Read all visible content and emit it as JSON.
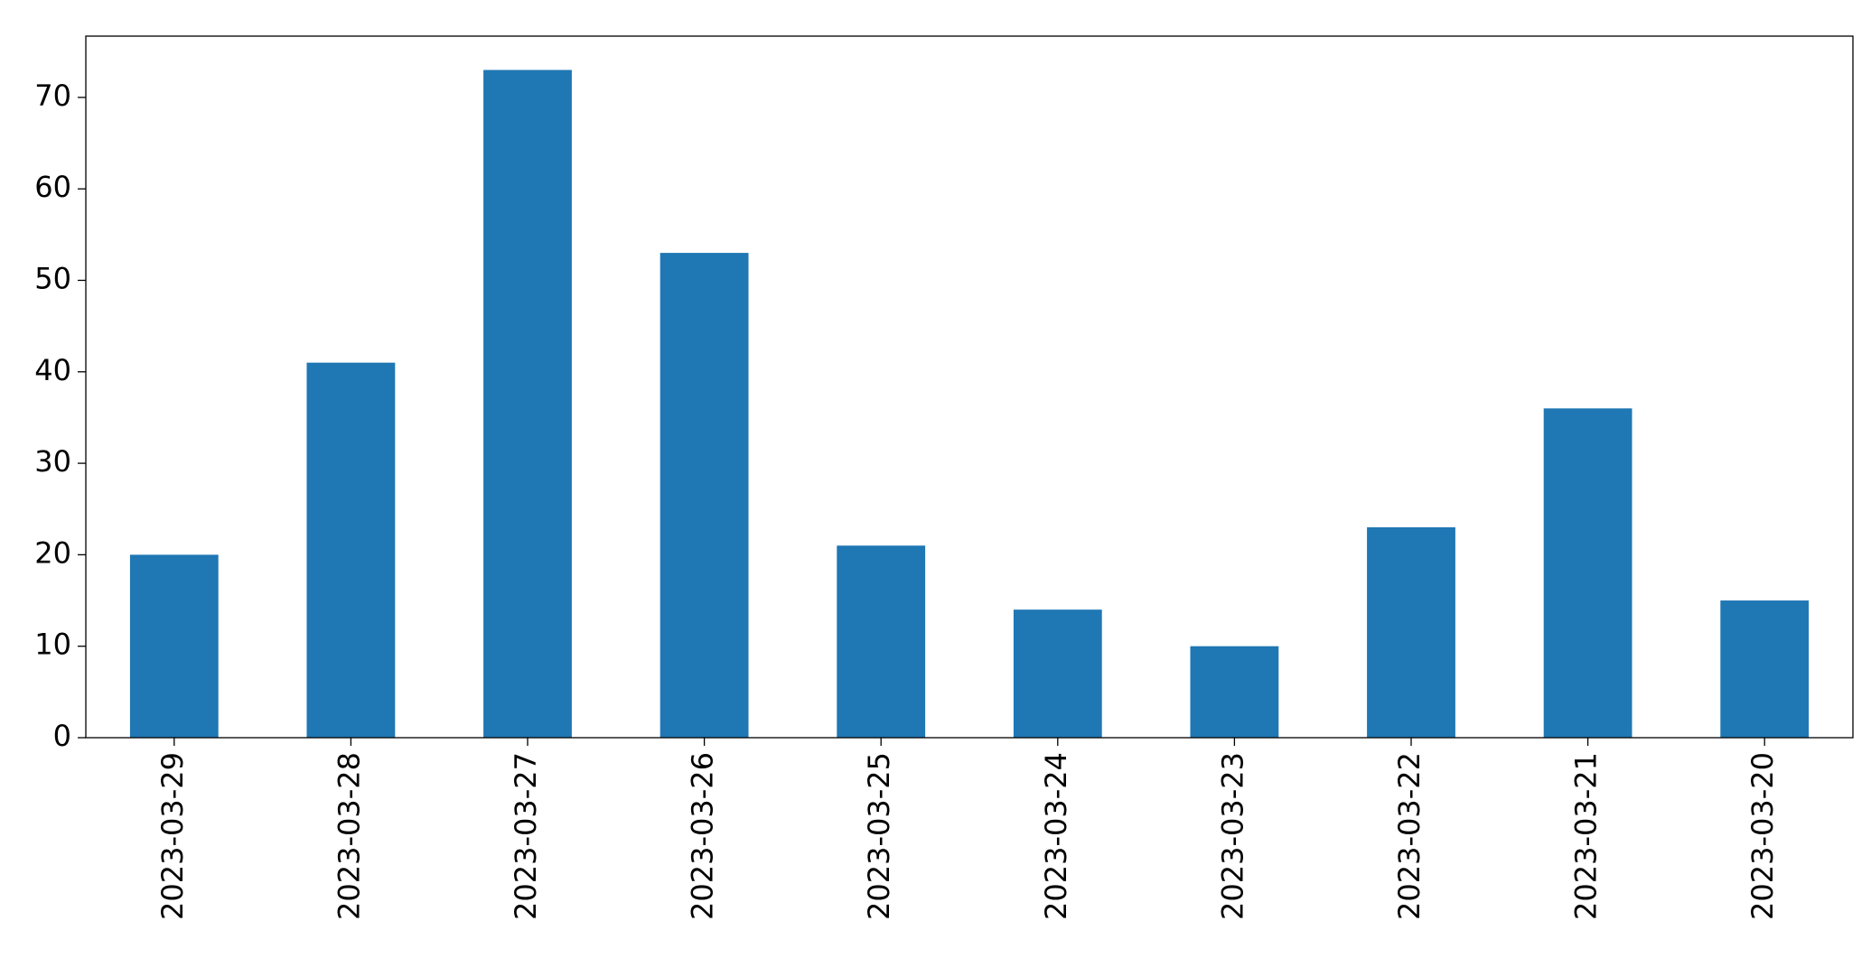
{
  "chart_data": {
    "type": "bar",
    "categories": [
      "2023-03-29",
      "2023-03-28",
      "2023-03-27",
      "2023-03-26",
      "2023-03-25",
      "2023-03-24",
      "2023-03-23",
      "2023-03-22",
      "2023-03-21",
      "2023-03-20"
    ],
    "values": [
      20,
      41,
      73,
      53,
      21,
      14,
      10,
      23,
      36,
      15
    ],
    "color": "#1f77b4",
    "ylim": [
      0,
      76.7
    ],
    "yticks": [
      0,
      10,
      20,
      30,
      40,
      50,
      60,
      70
    ],
    "grid": false
  }
}
